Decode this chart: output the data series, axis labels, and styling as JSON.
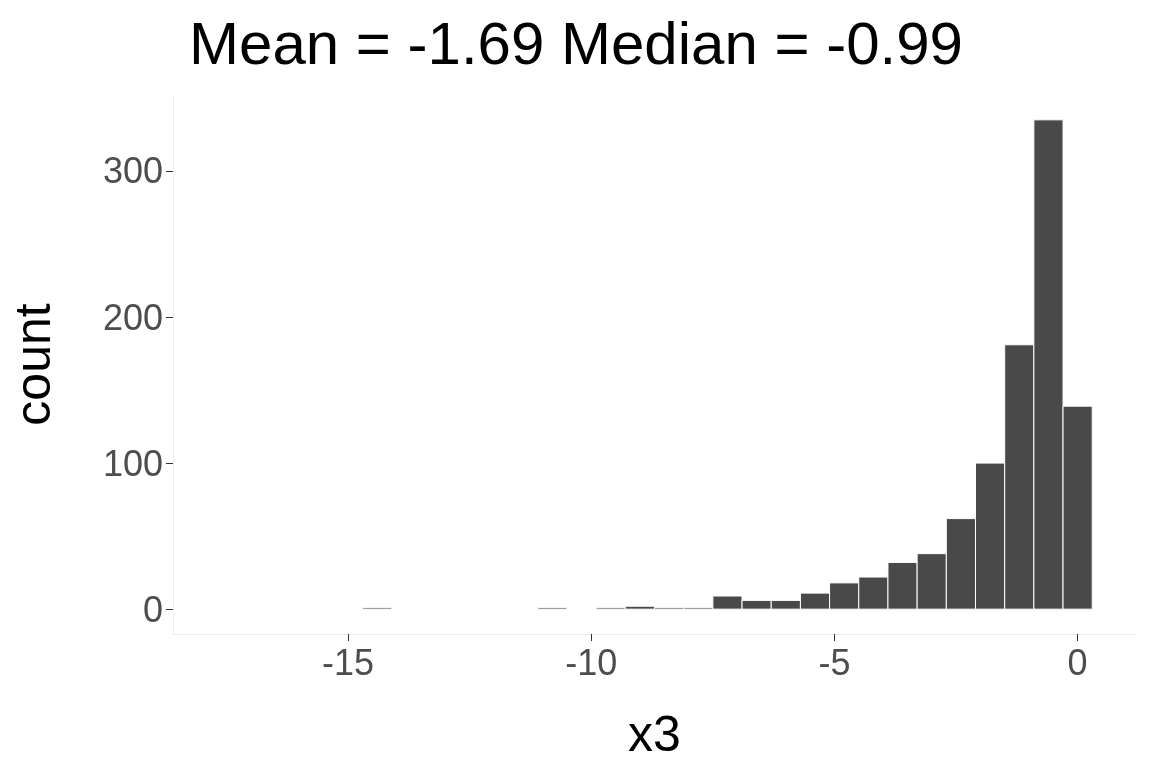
{
  "chart_data": {
    "type": "histogram",
    "title": "Mean = -1.69 Median = -0.99",
    "xlabel": "x3",
    "ylabel": "count",
    "bins": [
      -17.7,
      -17.1,
      -16.5,
      -15.9,
      -15.3,
      -14.7,
      -14.1,
      -13.5,
      -12.9,
      -12.3,
      -11.7,
      -11.1,
      -10.5,
      -9.9,
      -9.3,
      -8.7,
      -8.1,
      -7.5,
      -6.9,
      -6.3,
      -5.7,
      -5.1,
      -4.5,
      -3.9,
      -3.3,
      -2.7,
      -2.1,
      -1.5,
      -0.9,
      -0.3,
      0.3
    ],
    "values": [
      0,
      0,
      0,
      0,
      0,
      1,
      0,
      0,
      0,
      0,
      0,
      1,
      0,
      1,
      2,
      1,
      1,
      9,
      6,
      6,
      11,
      18,
      22,
      32,
      38,
      62,
      100,
      181,
      335,
      139
    ],
    "color": "#494949",
    "xlim": [
      -18.6,
      1.2
    ],
    "xticks": [
      -15,
      -10,
      -5,
      0
    ],
    "ylim": [
      -17,
      352
    ],
    "yticks": [
      0,
      100,
      200,
      300
    ],
    "grid": false
  }
}
